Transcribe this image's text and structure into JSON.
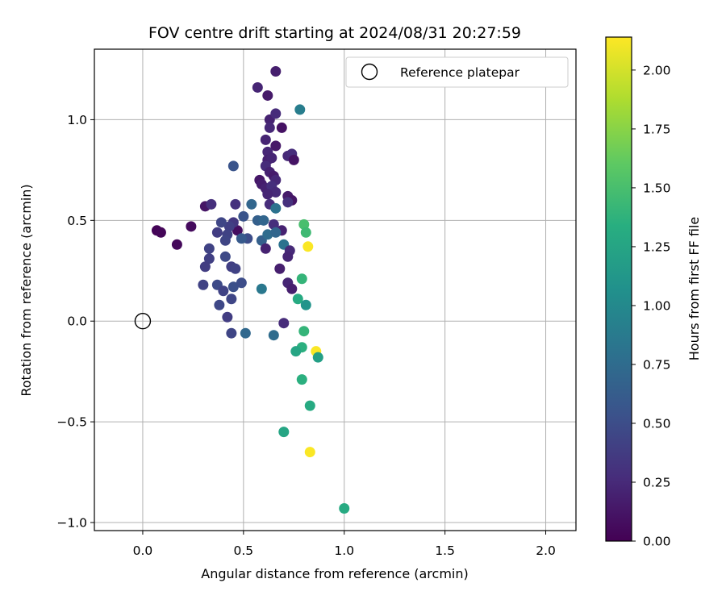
{
  "chart_data": {
    "type": "scatter",
    "title": "FOV centre drift starting at 2024/08/31 20:27:59",
    "xlabel": "Angular distance from reference (arcmin)",
    "ylabel": "Rotation from reference (arcmin)",
    "xlim": [
      -0.24,
      2.15
    ],
    "ylim": [
      -1.04,
      1.35
    ],
    "xticks": [
      0.0,
      0.5,
      1.0,
      1.5,
      2.0
    ],
    "xtick_labels": [
      "0.0",
      "0.5",
      "1.0",
      "1.5",
      "2.0"
    ],
    "yticks": [
      -1.0,
      -0.5,
      0.0,
      0.5,
      1.0
    ],
    "ytick_labels": [
      "−1.0",
      "−0.5",
      "0.0",
      "0.5",
      "1.0"
    ],
    "grid": true,
    "legend": {
      "placement": "top-right",
      "entries": [
        "Reference platepar"
      ]
    },
    "reference_point": {
      "x": 0.0,
      "y": 0.0,
      "marker": "open-circle"
    },
    "colorbar": {
      "label": "Hours from first FF file",
      "colormap": "viridis",
      "range": [
        0.0,
        2.14
      ],
      "ticks": [
        0.0,
        0.25,
        0.5,
        0.75,
        1.0,
        1.25,
        1.5,
        1.75,
        2.0
      ],
      "tick_labels": [
        "0.00",
        "0.25",
        "0.50",
        "0.75",
        "1.00",
        "1.25",
        "1.50",
        "1.75",
        "2.00"
      ]
    },
    "points": [
      {
        "x": 0.07,
        "y": 0.45,
        "t": 0.02
      },
      {
        "x": 0.09,
        "y": 0.44,
        "t": 0.03
      },
      {
        "x": 0.17,
        "y": 0.38,
        "t": 0.05
      },
      {
        "x": 0.24,
        "y": 0.47,
        "t": 0.06
      },
      {
        "x": 0.31,
        "y": 0.57,
        "t": 0.12
      },
      {
        "x": 0.34,
        "y": 0.58,
        "t": 0.28
      },
      {
        "x": 0.46,
        "y": 0.58,
        "t": 0.3
      },
      {
        "x": 0.47,
        "y": 0.45,
        "t": 0.08
      },
      {
        "x": 0.52,
        "y": 0.41,
        "t": 0.5
      },
      {
        "x": 0.57,
        "y": 1.16,
        "t": 0.22
      },
      {
        "x": 0.62,
        "y": 1.12,
        "t": 0.15
      },
      {
        "x": 0.66,
        "y": 1.24,
        "t": 0.18
      },
      {
        "x": 0.63,
        "y": 1.0,
        "t": 0.2
      },
      {
        "x": 0.66,
        "y": 1.03,
        "t": 0.26
      },
      {
        "x": 0.63,
        "y": 0.96,
        "t": 0.24
      },
      {
        "x": 0.69,
        "y": 0.96,
        "t": 0.1
      },
      {
        "x": 0.61,
        "y": 0.9,
        "t": 0.21
      },
      {
        "x": 0.66,
        "y": 0.87,
        "t": 0.14
      },
      {
        "x": 0.62,
        "y": 0.84,
        "t": 0.23
      },
      {
        "x": 0.72,
        "y": 0.82,
        "t": 0.25
      },
      {
        "x": 0.74,
        "y": 0.83,
        "t": 0.27
      },
      {
        "x": 0.75,
        "y": 0.8,
        "t": 0.11
      },
      {
        "x": 0.62,
        "y": 0.8,
        "t": 0.19
      },
      {
        "x": 0.64,
        "y": 0.81,
        "t": 0.22
      },
      {
        "x": 0.61,
        "y": 0.77,
        "t": 0.26
      },
      {
        "x": 0.63,
        "y": 0.74,
        "t": 0.2
      },
      {
        "x": 0.65,
        "y": 0.72,
        "t": 0.16
      },
      {
        "x": 0.66,
        "y": 0.7,
        "t": 0.24
      },
      {
        "x": 0.58,
        "y": 0.7,
        "t": 0.13
      },
      {
        "x": 0.59,
        "y": 0.68,
        "t": 0.17
      },
      {
        "x": 0.61,
        "y": 0.66,
        "t": 0.2
      },
      {
        "x": 0.64,
        "y": 0.67,
        "t": 0.28
      },
      {
        "x": 0.66,
        "y": 0.64,
        "t": 0.25
      },
      {
        "x": 0.62,
        "y": 0.63,
        "t": 0.22
      },
      {
        "x": 0.72,
        "y": 0.62,
        "t": 0.16
      },
      {
        "x": 0.74,
        "y": 0.6,
        "t": 0.12
      },
      {
        "x": 0.72,
        "y": 0.59,
        "t": 0.3
      },
      {
        "x": 0.63,
        "y": 0.58,
        "t": 0.27
      },
      {
        "x": 0.66,
        "y": 0.56,
        "t": 0.8
      },
      {
        "x": 0.54,
        "y": 0.58,
        "t": 0.7
      },
      {
        "x": 0.45,
        "y": 0.77,
        "t": 0.55
      },
      {
        "x": 0.78,
        "y": 1.05,
        "t": 0.9
      },
      {
        "x": 0.65,
        "y": 0.48,
        "t": 0.28
      },
      {
        "x": 0.69,
        "y": 0.45,
        "t": 0.2
      },
      {
        "x": 0.57,
        "y": 0.5,
        "t": 0.65
      },
      {
        "x": 0.6,
        "y": 0.5,
        "t": 0.7
      },
      {
        "x": 0.45,
        "y": 0.49,
        "t": 0.35
      },
      {
        "x": 0.43,
        "y": 0.47,
        "t": 0.4
      },
      {
        "x": 0.39,
        "y": 0.49,
        "t": 0.45
      },
      {
        "x": 0.42,
        "y": 0.43,
        "t": 0.42
      },
      {
        "x": 0.37,
        "y": 0.44,
        "t": 0.38
      },
      {
        "x": 0.41,
        "y": 0.4,
        "t": 0.44
      },
      {
        "x": 0.5,
        "y": 0.52,
        "t": 0.55
      },
      {
        "x": 0.49,
        "y": 0.41,
        "t": 0.6
      },
      {
        "x": 0.59,
        "y": 0.4,
        "t": 0.65
      },
      {
        "x": 0.62,
        "y": 0.43,
        "t": 0.75
      },
      {
        "x": 0.66,
        "y": 0.44,
        "t": 0.7
      },
      {
        "x": 0.61,
        "y": 0.36,
        "t": 0.2
      },
      {
        "x": 0.7,
        "y": 0.38,
        "t": 0.8
      },
      {
        "x": 0.73,
        "y": 0.35,
        "t": 0.25
      },
      {
        "x": 0.72,
        "y": 0.32,
        "t": 0.22
      },
      {
        "x": 0.68,
        "y": 0.26,
        "t": 0.18
      },
      {
        "x": 0.33,
        "y": 0.36,
        "t": 0.42
      },
      {
        "x": 0.41,
        "y": 0.32,
        "t": 0.47
      },
      {
        "x": 0.33,
        "y": 0.31,
        "t": 0.4
      },
      {
        "x": 0.31,
        "y": 0.27,
        "t": 0.38
      },
      {
        "x": 0.44,
        "y": 0.27,
        "t": 0.4
      },
      {
        "x": 0.46,
        "y": 0.26,
        "t": 0.42
      },
      {
        "x": 0.3,
        "y": 0.18,
        "t": 0.42
      },
      {
        "x": 0.37,
        "y": 0.18,
        "t": 0.48
      },
      {
        "x": 0.4,
        "y": 0.15,
        "t": 0.43
      },
      {
        "x": 0.45,
        "y": 0.17,
        "t": 0.52
      },
      {
        "x": 0.49,
        "y": 0.19,
        "t": 0.5
      },
      {
        "x": 0.59,
        "y": 0.16,
        "t": 0.85
      },
      {
        "x": 0.72,
        "y": 0.19,
        "t": 0.22
      },
      {
        "x": 0.74,
        "y": 0.16,
        "t": 0.18
      },
      {
        "x": 0.44,
        "y": 0.11,
        "t": 0.45
      },
      {
        "x": 0.38,
        "y": 0.08,
        "t": 0.46
      },
      {
        "x": 0.42,
        "y": 0.02,
        "t": 0.38
      },
      {
        "x": 0.7,
        "y": -0.01,
        "t": 0.26
      },
      {
        "x": 0.44,
        "y": -0.06,
        "t": 0.44
      },
      {
        "x": 0.51,
        "y": -0.06,
        "t": 0.72
      },
      {
        "x": 0.65,
        "y": -0.07,
        "t": 0.75
      },
      {
        "x": 0.8,
        "y": 0.48,
        "t": 1.5
      },
      {
        "x": 0.81,
        "y": 0.44,
        "t": 1.45
      },
      {
        "x": 0.82,
        "y": 0.37,
        "t": 2.13
      },
      {
        "x": 0.79,
        "y": 0.21,
        "t": 1.4
      },
      {
        "x": 0.77,
        "y": 0.11,
        "t": 1.3
      },
      {
        "x": 0.81,
        "y": 0.08,
        "t": 1.1
      },
      {
        "x": 0.8,
        "y": -0.05,
        "t": 1.4
      },
      {
        "x": 0.79,
        "y": -0.13,
        "t": 1.35
      },
      {
        "x": 0.76,
        "y": -0.15,
        "t": 1.25
      },
      {
        "x": 0.86,
        "y": -0.15,
        "t": 2.13
      },
      {
        "x": 0.87,
        "y": -0.18,
        "t": 1.2
      },
      {
        "x": 0.79,
        "y": -0.29,
        "t": 1.35
      },
      {
        "x": 0.83,
        "y": -0.42,
        "t": 1.3
      },
      {
        "x": 0.7,
        "y": -0.55,
        "t": 1.25
      },
      {
        "x": 0.83,
        "y": -0.65,
        "t": 2.13
      },
      {
        "x": 1.0,
        "y": -0.93,
        "t": 1.3
      }
    ]
  }
}
